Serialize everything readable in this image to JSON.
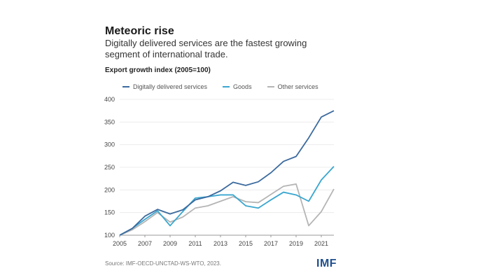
{
  "chart_data": {
    "type": "line",
    "title": "Meteoric rise",
    "subtitle": "Digitally delivered services are the fastest growing segment of international trade.",
    "ylabel": "Export growth index (2005=100)",
    "xlabel": "",
    "x": [
      2005,
      2006,
      2007,
      2008,
      2009,
      2010,
      2011,
      2012,
      2013,
      2014,
      2015,
      2016,
      2017,
      2018,
      2019,
      2020,
      2021,
      2022
    ],
    "xticks": [
      "2005",
      "2007",
      "2009",
      "2011",
      "2013",
      "2015",
      "2017",
      "2019",
      "2021"
    ],
    "yticks": [
      "100",
      "150",
      "200",
      "250",
      "300",
      "350",
      "400"
    ],
    "ylim": [
      100,
      400
    ],
    "grid": true,
    "legend_position": "top-left",
    "series": [
      {
        "name": "Digitally delivered services",
        "color": "#3b6a9e",
        "values": [
          100,
          115,
          142,
          157,
          147,
          156,
          178,
          185,
          198,
          217,
          210,
          218,
          238,
          263,
          274,
          315,
          361,
          375
        ]
      },
      {
        "name": "Goods",
        "color": "#3aa6cf",
        "values": [
          100,
          115,
          135,
          154,
          121,
          152,
          182,
          185,
          189,
          189,
          165,
          160,
          178,
          195,
          189,
          175,
          222,
          252
        ]
      },
      {
        "name": "Other services",
        "color": "#b5b5b5",
        "values": [
          100,
          112,
          130,
          150,
          129,
          140,
          160,
          165,
          175,
          185,
          174,
          172,
          190,
          208,
          213,
          121,
          152,
          202
        ]
      }
    ]
  },
  "footer": {
    "source": "Source: IMF-OECD-UNCTAD-WS-WTO, 2023.",
    "logo": "IMF"
  }
}
